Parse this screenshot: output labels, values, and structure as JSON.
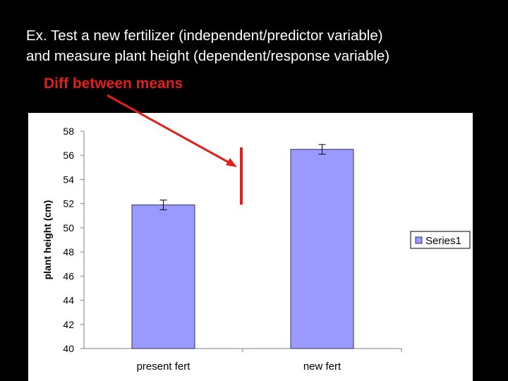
{
  "slide": {
    "title": "Ex.  Test a new fertilizer (independent/predictor variable)\nand measure plant height (dependent/response variable)",
    "annotation": "Diff between means"
  },
  "colors": {
    "background": "#000000",
    "annotation": "#e0201a",
    "bar_fill": "#9999ff",
    "bar_stroke": "#333366",
    "chart_background": "#ffffff",
    "gridline_axis": "#808080"
  },
  "chart_data": {
    "type": "bar",
    "title": "",
    "xlabel": "",
    "ylabel": "plant height (cm)",
    "categories": [
      "present fert",
      "new fert"
    ],
    "series": [
      {
        "name": "Series1",
        "values": [
          51.9,
          56.5
        ],
        "error": [
          0.4,
          0.4
        ]
      }
    ],
    "ylim": [
      40,
      58
    ],
    "yticks": [
      40,
      42,
      44,
      46,
      48,
      50,
      52,
      54,
      56,
      58
    ],
    "grid": false,
    "legend": "right"
  }
}
